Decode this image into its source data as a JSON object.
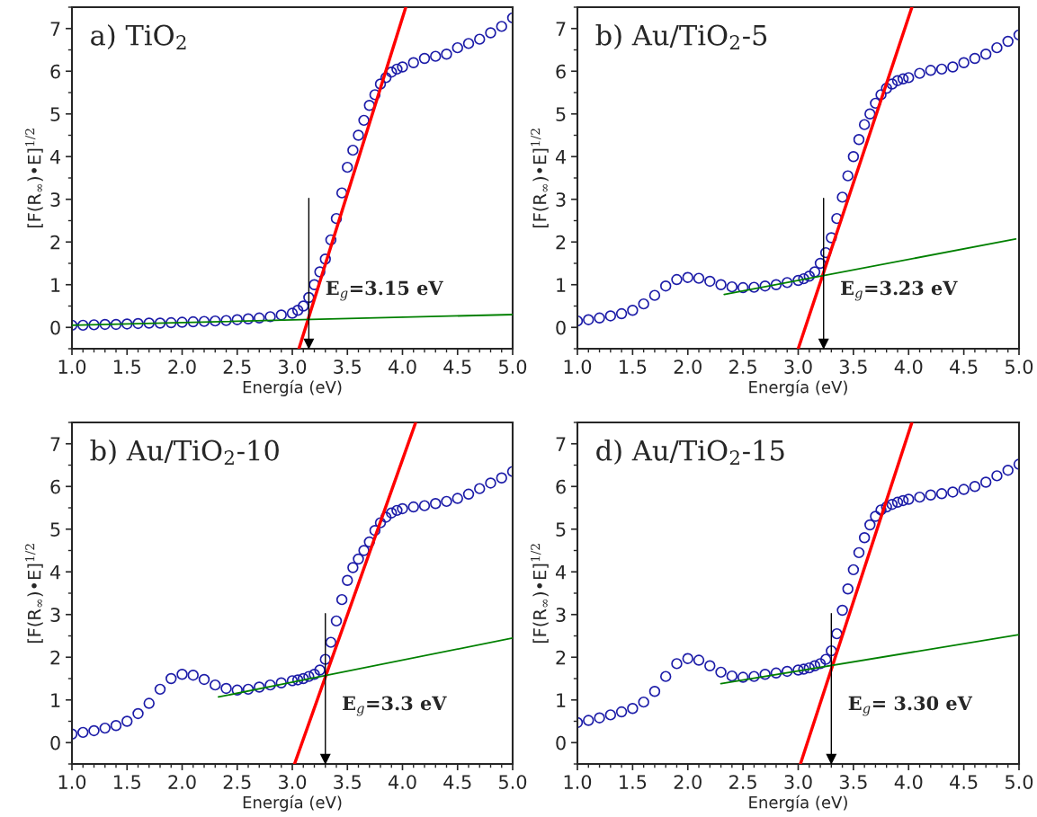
{
  "chart_data": [
    {
      "type": "scatter",
      "title": "a) TiO$_{2}$",
      "xlabel": "Energía (eV)",
      "ylabel": "[F(R$_{∞}$)•E]$^{1/2}$",
      "xlim": [
        1,
        5
      ],
      "ylim": [
        -0.5,
        7.5
      ],
      "xticks": [
        {
          "value": 1,
          "label": "1.0"
        },
        1.5,
        {
          "value": 2,
          "label": "2.0"
        },
        2.5,
        {
          "value": 3,
          "label": "3.0"
        },
        3.5,
        {
          "value": 4,
          "label": "4.0"
        },
        4.5,
        {
          "value": 5,
          "label": "5.0"
        }
      ],
      "yticks": [
        0,
        1,
        2,
        3,
        4,
        5,
        6,
        7
      ],
      "series": [
        {
          "marker": "circle",
          "color": "#1c1ca8",
          "x": [
            1.0,
            1.1,
            1.2,
            1.3,
            1.4,
            1.5,
            1.6,
            1.7,
            1.8,
            1.9,
            2.0,
            2.1,
            2.2,
            2.3,
            2.4,
            2.5,
            2.6,
            2.7,
            2.8,
            2.9,
            3.0,
            3.05,
            3.1,
            3.15,
            3.2,
            3.25,
            3.3,
            3.35,
            3.4,
            3.45,
            3.5,
            3.55,
            3.6,
            3.65,
            3.7,
            3.75,
            3.8,
            3.85,
            3.9,
            3.95,
            4.0,
            4.1,
            4.2,
            4.3,
            4.4,
            4.5,
            4.6,
            4.7,
            4.8,
            4.9,
            5.0
          ],
          "values": [
            0.05,
            0.05,
            0.06,
            0.07,
            0.07,
            0.08,
            0.09,
            0.1,
            0.1,
            0.11,
            0.12,
            0.13,
            0.14,
            0.15,
            0.16,
            0.18,
            0.2,
            0.22,
            0.25,
            0.29,
            0.33,
            0.4,
            0.5,
            0.7,
            1.0,
            1.3,
            1.6,
            2.05,
            2.55,
            3.15,
            3.75,
            4.15,
            4.5,
            4.85,
            5.2,
            5.45,
            5.7,
            5.85,
            5.98,
            6.05,
            6.1,
            6.2,
            6.3,
            6.35,
            6.4,
            6.55,
            6.65,
            6.75,
            6.9,
            7.05,
            7.25
          ]
        },
        {
          "type": "line",
          "color": "#ff0000",
          "x": [
            3.06,
            4.03
          ],
          "values": [
            -0.5,
            7.5
          ]
        },
        {
          "type": "line",
          "color": "#008000",
          "x": [
            1.0,
            5.0
          ],
          "values": [
            0.05,
            0.3
          ]
        }
      ],
      "ref_lines": [
        {
          "axis": "x",
          "value": 3.15,
          "label": "E$_{g}$=3.15 eV"
        }
      ]
    },
    {
      "type": "scatter",
      "title": "b) Au/TiO$_{2}$-5",
      "xlabel": "Energía (eV)",
      "ylabel": "[F(R$_{∞}$)•E]$^{1/2}$",
      "xlim": [
        1,
        5
      ],
      "ylim": [
        -0.5,
        7.5
      ],
      "xticks": [
        {
          "value": 1,
          "label": "1.0"
        },
        1.5,
        {
          "value": 2,
          "label": "2.0"
        },
        2.5,
        {
          "value": 3,
          "label": "3.0"
        },
        3.5,
        {
          "value": 4,
          "label": "4.0"
        },
        4.5,
        {
          "value": 5,
          "label": "5.0"
        }
      ],
      "yticks": [
        0,
        1,
        2,
        3,
        4,
        5,
        6,
        7
      ],
      "series": [
        {
          "marker": "circle",
          "color": "#1c1ca8",
          "x": [
            1.0,
            1.1,
            1.2,
            1.3,
            1.4,
            1.5,
            1.6,
            1.7,
            1.8,
            1.9,
            2.0,
            2.1,
            2.2,
            2.3,
            2.4,
            2.5,
            2.6,
            2.7,
            2.8,
            2.9,
            3.0,
            3.05,
            3.1,
            3.15,
            3.2,
            3.25,
            3.3,
            3.35,
            3.4,
            3.45,
            3.5,
            3.55,
            3.6,
            3.65,
            3.7,
            3.75,
            3.8,
            3.85,
            3.9,
            3.95,
            4.0,
            4.1,
            4.2,
            4.3,
            4.4,
            4.5,
            4.6,
            4.7,
            4.8,
            4.9,
            5.0
          ],
          "values": [
            0.15,
            0.18,
            0.22,
            0.27,
            0.32,
            0.4,
            0.55,
            0.75,
            0.97,
            1.12,
            1.17,
            1.15,
            1.08,
            1.0,
            0.95,
            0.93,
            0.94,
            0.97,
            1.0,
            1.05,
            1.1,
            1.14,
            1.2,
            1.3,
            1.5,
            1.75,
            2.1,
            2.55,
            3.05,
            3.55,
            4.0,
            4.4,
            4.75,
            5.0,
            5.25,
            5.45,
            5.6,
            5.7,
            5.78,
            5.82,
            5.85,
            5.95,
            6.02,
            6.05,
            6.1,
            6.2,
            6.3,
            6.4,
            6.55,
            6.7,
            6.85
          ]
        },
        {
          "type": "line",
          "color": "#ff0000",
          "x": [
            3.0,
            4.03
          ],
          "values": [
            -0.5,
            7.5
          ]
        },
        {
          "type": "line",
          "color": "#008000",
          "x": [
            2.33,
            4.97
          ],
          "values": [
            0.77,
            2.07
          ]
        }
      ],
      "ref_lines": [
        {
          "axis": "x",
          "value": 3.23,
          "label": "E$_{g}$=3.23 eV"
        }
      ]
    },
    {
      "type": "scatter",
      "title": "b) Au/TiO$_{2}$-10",
      "xlabel": "Energía (eV)",
      "ylabel": "[F(R$_{∞}$)•E]$^{1/2}$",
      "xlim": [
        1,
        5
      ],
      "ylim": [
        -0.5,
        7.5
      ],
      "xticks": [
        {
          "value": 1,
          "label": "1.0"
        },
        1.5,
        {
          "value": 2,
          "label": "2.0"
        },
        2.5,
        {
          "value": 3,
          "label": "3.0"
        },
        3.5,
        {
          "value": 4,
          "label": "4.0"
        },
        4.5,
        {
          "value": 5,
          "label": "5.0"
        }
      ],
      "yticks": [
        0,
        1,
        2,
        3,
        4,
        5,
        6,
        7
      ],
      "series": [
        {
          "marker": "circle",
          "color": "#1c1ca8",
          "x": [
            1.0,
            1.1,
            1.2,
            1.3,
            1.4,
            1.5,
            1.6,
            1.7,
            1.8,
            1.9,
            2.0,
            2.1,
            2.2,
            2.3,
            2.4,
            2.5,
            2.6,
            2.7,
            2.8,
            2.9,
            3.0,
            3.05,
            3.1,
            3.15,
            3.2,
            3.25,
            3.3,
            3.35,
            3.4,
            3.45,
            3.5,
            3.55,
            3.6,
            3.65,
            3.7,
            3.75,
            3.8,
            3.85,
            3.9,
            3.95,
            4.0,
            4.1,
            4.2,
            4.3,
            4.4,
            4.5,
            4.6,
            4.7,
            4.8,
            4.9,
            5.0
          ],
          "values": [
            0.2,
            0.24,
            0.28,
            0.34,
            0.4,
            0.5,
            0.68,
            0.92,
            1.25,
            1.5,
            1.6,
            1.58,
            1.48,
            1.35,
            1.27,
            1.23,
            1.25,
            1.3,
            1.35,
            1.4,
            1.45,
            1.47,
            1.5,
            1.55,
            1.6,
            1.7,
            1.95,
            2.35,
            2.85,
            3.35,
            3.8,
            4.1,
            4.3,
            4.5,
            4.7,
            4.97,
            5.15,
            5.28,
            5.38,
            5.44,
            5.48,
            5.52,
            5.55,
            5.6,
            5.65,
            5.72,
            5.82,
            5.95,
            6.08,
            6.2,
            6.35
          ]
        },
        {
          "type": "line",
          "color": "#ff0000",
          "x": [
            3.02,
            4.12
          ],
          "values": [
            -0.5,
            7.5
          ]
        },
        {
          "type": "line",
          "color": "#008000",
          "x": [
            2.33,
            5.0
          ],
          "values": [
            1.07,
            2.45
          ]
        }
      ],
      "ref_lines": [
        {
          "axis": "x",
          "value": 3.3,
          "label": "E$_{g}$=3.3 eV"
        }
      ]
    },
    {
      "type": "scatter",
      "title": "d) Au/TiO$_{2}$-15",
      "xlabel": "Energía (eV)",
      "ylabel": "[F(R$_{∞}$)•E]$^{1/2}$",
      "xlim": [
        1,
        5
      ],
      "ylim": [
        -0.5,
        7.5
      ],
      "xticks": [
        {
          "value": 1,
          "label": "1.0"
        },
        1.5,
        {
          "value": 2,
          "label": "2.0"
        },
        2.5,
        {
          "value": 3,
          "label": "3.0"
        },
        3.5,
        {
          "value": 4,
          "label": "4.0"
        },
        4.5,
        {
          "value": 5,
          "label": "5.0"
        }
      ],
      "yticks": [
        0,
        1,
        2,
        3,
        4,
        5,
        6,
        7
      ],
      "series": [
        {
          "marker": "circle",
          "color": "#1c1ca8",
          "x": [
            1.0,
            1.1,
            1.2,
            1.3,
            1.4,
            1.5,
            1.6,
            1.7,
            1.8,
            1.9,
            2.0,
            2.1,
            2.2,
            2.3,
            2.4,
            2.5,
            2.6,
            2.7,
            2.8,
            2.9,
            3.0,
            3.05,
            3.1,
            3.15,
            3.2,
            3.25,
            3.3,
            3.35,
            3.4,
            3.45,
            3.5,
            3.55,
            3.6,
            3.65,
            3.7,
            3.75,
            3.8,
            3.85,
            3.9,
            3.95,
            4.0,
            4.1,
            4.2,
            4.3,
            4.4,
            4.5,
            4.6,
            4.7,
            4.8,
            4.9,
            5.0
          ],
          "values": [
            0.47,
            0.52,
            0.58,
            0.65,
            0.72,
            0.8,
            0.95,
            1.2,
            1.55,
            1.85,
            1.97,
            1.93,
            1.8,
            1.65,
            1.56,
            1.53,
            1.55,
            1.6,
            1.63,
            1.67,
            1.7,
            1.72,
            1.75,
            1.8,
            1.85,
            1.95,
            2.15,
            2.55,
            3.1,
            3.6,
            4.05,
            4.45,
            4.8,
            5.1,
            5.3,
            5.45,
            5.52,
            5.58,
            5.63,
            5.67,
            5.7,
            5.75,
            5.8,
            5.83,
            5.87,
            5.93,
            6.0,
            6.1,
            6.25,
            6.38,
            6.52
          ]
        },
        {
          "type": "line",
          "color": "#ff0000",
          "x": [
            3.02,
            4.03
          ],
          "values": [
            -0.5,
            7.5
          ]
        },
        {
          "type": "line",
          "color": "#008000",
          "x": [
            2.3,
            5.0
          ],
          "values": [
            1.38,
            2.53
          ]
        }
      ],
      "ref_lines": [
        {
          "axis": "x",
          "value": 3.3,
          "label": "E$_{g}$= 3.30 eV"
        }
      ]
    }
  ]
}
